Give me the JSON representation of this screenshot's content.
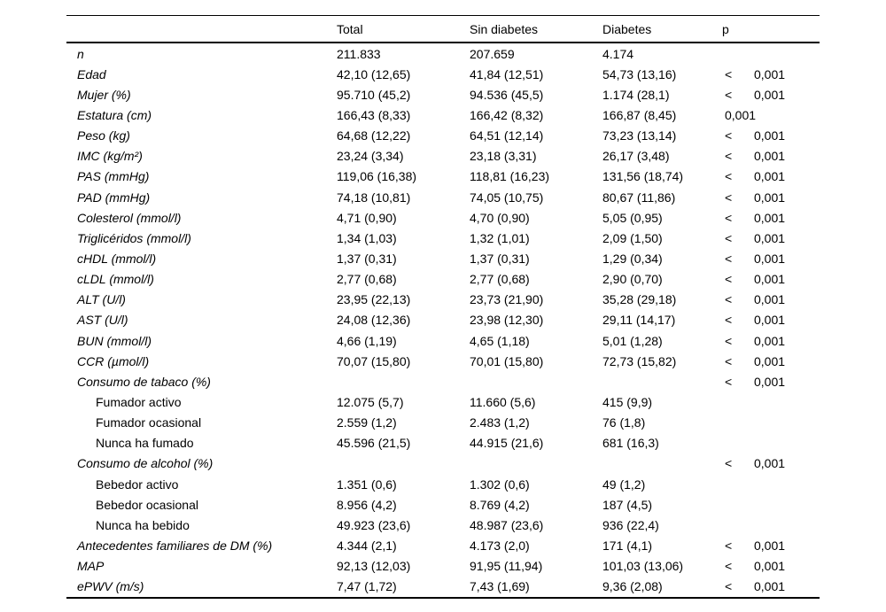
{
  "table": {
    "columns": [
      "",
      "Total",
      "Sin diabetes",
      "Diabetes",
      "p"
    ],
    "rows": [
      {
        "label": "n",
        "italic": true,
        "indent": false,
        "total": "211.833",
        "sin_diabetes": "207.659",
        "diabetes": "4.174",
        "p_lt": "",
        "p": ""
      },
      {
        "label": "Edad",
        "italic": true,
        "indent": false,
        "total": "42,10 (12,65)",
        "sin_diabetes": "41,84 (12,51)",
        "diabetes": "54,73 (13,16)",
        "p_lt": "<",
        "p": "0,001"
      },
      {
        "label": "Mujer (%)",
        "italic": true,
        "indent": false,
        "total": "95.710 (45,2)",
        "sin_diabetes": "94.536 (45,5)",
        "diabetes": "1.174 (28,1)",
        "p_lt": "<",
        "p": "0,001"
      },
      {
        "label": "Estatura (cm)",
        "italic": true,
        "indent": false,
        "total": "166,43 (8,33)",
        "sin_diabetes": "166,42 (8,32)",
        "diabetes": "166,87 (8,45)",
        "p_lt": "",
        "p": "0,001"
      },
      {
        "label": "Peso (kg)",
        "italic": true,
        "indent": false,
        "total": "64,68 (12,22)",
        "sin_diabetes": "64,51 (12,14)",
        "diabetes": "73,23 (13,14)",
        "p_lt": "<",
        "p": "0,001"
      },
      {
        "label": "IMC (kg/m²)",
        "italic": true,
        "indent": false,
        "total": "23,24 (3,34)",
        "sin_diabetes": "23,18 (3,31)",
        "diabetes": "26,17 (3,48)",
        "p_lt": "<",
        "p": "0,001"
      },
      {
        "label": "PAS (mmHg)",
        "italic": true,
        "indent": false,
        "total": "119,06 (16,38)",
        "sin_diabetes": "118,81 (16,23)",
        "diabetes": "131,56 (18,74)",
        "p_lt": "<",
        "p": "0,001"
      },
      {
        "label": "PAD (mmHg)",
        "italic": true,
        "indent": false,
        "total": "74,18 (10,81)",
        "sin_diabetes": "74,05 (10,75)",
        "diabetes": "80,67 (11,86)",
        "p_lt": "<",
        "p": "0,001"
      },
      {
        "label": "Colesterol (mmol/l)",
        "italic": true,
        "indent": false,
        "total": "4,71 (0,90)",
        "sin_diabetes": "4,70 (0,90)",
        "diabetes": "5,05 (0,95)",
        "p_lt": "<",
        "p": "0,001"
      },
      {
        "label": "Triglicéridos (mmol/l)",
        "italic": true,
        "indent": false,
        "total": "1,34 (1,03)",
        "sin_diabetes": "1,32 (1,01)",
        "diabetes": "2,09 (1,50)",
        "p_lt": "<",
        "p": "0,001"
      },
      {
        "label": "cHDL (mmol/l)",
        "italic": true,
        "indent": false,
        "total": "1,37 (0,31)",
        "sin_diabetes": "1,37 (0,31)",
        "diabetes": "1,29 (0,34)",
        "p_lt": "<",
        "p": "0,001"
      },
      {
        "label": "cLDL (mmol/l)",
        "italic": true,
        "indent": false,
        "total": "2,77 (0,68)",
        "sin_diabetes": "2,77 (0,68)",
        "diabetes": "2,90 (0,70)",
        "p_lt": "<",
        "p": "0,001"
      },
      {
        "label": "ALT (U/l)",
        "italic": true,
        "indent": false,
        "total": "23,95 (22,13)",
        "sin_diabetes": "23,73 (21,90)",
        "diabetes": "35,28 (29,18)",
        "p_lt": "<",
        "p": "0,001"
      },
      {
        "label": "AST (U/l)",
        "italic": true,
        "indent": false,
        "total": "24,08 (12,36)",
        "sin_diabetes": "23,98 (12,30)",
        "diabetes": "29,11 (14,17)",
        "p_lt": "<",
        "p": "0,001"
      },
      {
        "label": "BUN (mmol/l)",
        "italic": true,
        "indent": false,
        "total": "4,66 (1,19)",
        "sin_diabetes": "4,65 (1,18)",
        "diabetes": "5,01 (1,28)",
        "p_lt": "<",
        "p": "0,001"
      },
      {
        "label": "CCR (µmol/l)",
        "italic": true,
        "indent": false,
        "total": "70,07 (15,80)",
        "sin_diabetes": "70,01 (15,80)",
        "diabetes": "72,73 (15,82)",
        "p_lt": "<",
        "p": "0,001"
      },
      {
        "label": "Consumo de tabaco (%)",
        "italic": true,
        "indent": false,
        "total": "",
        "sin_diabetes": "",
        "diabetes": "",
        "p_lt": "<",
        "p": "0,001"
      },
      {
        "label": "Fumador activo",
        "italic": false,
        "indent": true,
        "total": "12.075 (5,7)",
        "sin_diabetes": "11.660 (5,6)",
        "diabetes": "415 (9,9)",
        "p_lt": "",
        "p": ""
      },
      {
        "label": "Fumador ocasional",
        "italic": false,
        "indent": true,
        "total": "2.559 (1,2)",
        "sin_diabetes": "2.483 (1,2)",
        "diabetes": "76 (1,8)",
        "p_lt": "",
        "p": ""
      },
      {
        "label": "Nunca ha fumado",
        "italic": false,
        "indent": true,
        "total": "45.596 (21,5)",
        "sin_diabetes": "44.915 (21,6)",
        "diabetes": "681 (16,3)",
        "p_lt": "",
        "p": ""
      },
      {
        "label": "Consumo de alcohol (%)",
        "italic": true,
        "indent": false,
        "total": "",
        "sin_diabetes": "",
        "diabetes": "",
        "p_lt": "<",
        "p": "0,001"
      },
      {
        "label": "Bebedor activo",
        "italic": false,
        "indent": true,
        "total": "1.351 (0,6)",
        "sin_diabetes": "1.302 (0,6)",
        "diabetes": "49 (1,2)",
        "p_lt": "",
        "p": ""
      },
      {
        "label": "Bebedor ocasional",
        "italic": false,
        "indent": true,
        "total": "8.956 (4,2)",
        "sin_diabetes": "8.769 (4,2)",
        "diabetes": "187 (4,5)",
        "p_lt": "",
        "p": ""
      },
      {
        "label": "Nunca ha bebido",
        "italic": false,
        "indent": true,
        "total": "49.923 (23,6)",
        "sin_diabetes": "48.987 (23,6)",
        "diabetes": "936 (22,4)",
        "p_lt": "",
        "p": ""
      },
      {
        "label": "Antecedentes familiares de DM (%)",
        "italic": true,
        "indent": false,
        "total": "4.344 (2,1)",
        "sin_diabetes": "4.173 (2,0)",
        "diabetes": "171 (4,1)",
        "p_lt": "<",
        "p": "0,001"
      },
      {
        "label": "MAP",
        "italic": true,
        "indent": false,
        "total": "92,13 (12,03)",
        "sin_diabetes": "91,95 (11,94)",
        "diabetes": "101,03 (13,06)",
        "p_lt": "<",
        "p": "0,001"
      },
      {
        "label": "ePWV (m/s)",
        "italic": true,
        "indent": false,
        "total": "7,47 (1,72)",
        "sin_diabetes": "7,43 (1,69)",
        "diabetes": "9,36 (2,08)",
        "p_lt": "<",
        "p": "0,001"
      }
    ]
  },
  "colors": {
    "text": "#000000",
    "background": "#ffffff",
    "rule": "#000000"
  }
}
